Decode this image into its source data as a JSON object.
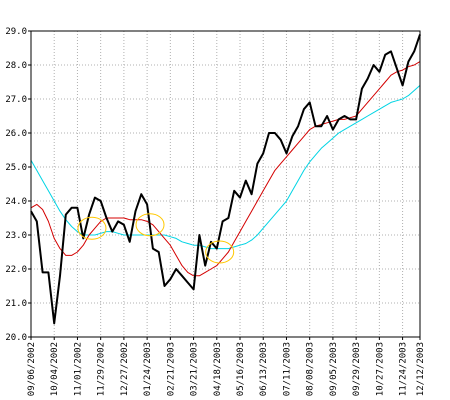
{
  "chart_data": {
    "type": "line",
    "title": "",
    "xlabel": "",
    "ylabel": "",
    "ylim": [
      20.0,
      29.0
    ],
    "grid": true,
    "y_ticks": [
      "20.0",
      "21.0",
      "22.0",
      "23.0",
      "24.0",
      "25.0",
      "26.0",
      "27.0",
      "28.0",
      "29.0"
    ],
    "x_ticks": [
      "09/06/2002",
      "10/04/2002",
      "11/01/2002",
      "11/29/2002",
      "12/27/2002",
      "01/24/2003",
      "02/21/2003",
      "03/21/2003",
      "04/18/2003",
      "05/16/2003",
      "06/13/2003",
      "07/11/2003",
      "08/08/2003",
      "09/05/2003",
      "09/29/2003",
      "10/27/2003",
      "11/24/2003",
      "12/12/2003"
    ],
    "x_tick_index": [
      0,
      4,
      8,
      12,
      16,
      20,
      24,
      28,
      32,
      36,
      40,
      44,
      48,
      52,
      56,
      60,
      64,
      67
    ],
    "x_count": 68,
    "colors": {
      "price": "#000000",
      "short_ma": "#d40000",
      "long_ma": "#00d4e4",
      "highlight": "#ffc800",
      "grid": "#b0b0b0"
    },
    "series": [
      {
        "key": "price",
        "color": "#000000",
        "values": [
          23.7,
          23.4,
          21.9,
          21.9,
          20.4,
          21.8,
          23.6,
          23.8,
          23.8,
          22.9,
          23.6,
          24.1,
          24.0,
          23.5,
          23.1,
          23.4,
          23.3,
          22.8,
          23.7,
          24.2,
          23.9,
          22.6,
          22.5,
          21.5,
          21.7,
          22.0,
          21.8,
          21.6,
          21.4,
          23.0,
          22.1,
          22.8,
          22.6,
          23.4,
          23.5,
          24.3,
          24.1,
          24.6,
          24.2,
          25.1,
          25.4,
          26.0,
          26.0,
          25.8,
          25.4,
          25.9,
          26.2,
          26.7,
          26.9,
          26.2,
          26.2,
          26.5,
          26.1,
          26.4,
          26.5,
          26.4,
          26.4,
          27.3,
          27.6,
          28.0,
          27.8,
          28.3,
          28.4,
          27.9,
          27.4,
          28.1,
          28.4,
          28.9
        ]
      },
      {
        "key": "short_ma",
        "color": "#d40000",
        "values": [
          23.8,
          23.9,
          23.75,
          23.4,
          22.9,
          22.6,
          22.4,
          22.4,
          22.5,
          22.7,
          23.0,
          23.2,
          23.4,
          23.5,
          23.5,
          23.5,
          23.5,
          23.45,
          23.45,
          23.45,
          23.4,
          23.3,
          23.1,
          22.9,
          22.7,
          22.4,
          22.1,
          21.9,
          21.8,
          21.8,
          21.9,
          22.0,
          22.1,
          22.3,
          22.5,
          22.8,
          23.1,
          23.4,
          23.7,
          24.0,
          24.3,
          24.6,
          24.9,
          25.1,
          25.3,
          25.5,
          25.7,
          25.9,
          26.1,
          26.2,
          26.25,
          26.3,
          26.35,
          26.4,
          26.4,
          26.45,
          26.5,
          26.7,
          26.9,
          27.1,
          27.3,
          27.5,
          27.7,
          27.8,
          27.85,
          27.95,
          28.0,
          28.1
        ]
      },
      {
        "key": "long_ma",
        "color": "#00d4e4",
        "values": [
          25.2,
          24.9,
          24.6,
          24.3,
          24.0,
          23.7,
          23.45,
          23.25,
          23.1,
          23.0,
          23.0,
          23.0,
          23.05,
          23.1,
          23.1,
          23.05,
          23.0,
          23.0,
          23.0,
          23.0,
          23.0,
          23.0,
          23.0,
          23.0,
          22.95,
          22.9,
          22.8,
          22.75,
          22.7,
          22.7,
          22.65,
          22.6,
          22.6,
          22.6,
          22.6,
          22.65,
          22.7,
          22.75,
          22.85,
          23.0,
          23.2,
          23.4,
          23.6,
          23.8,
          24.0,
          24.3,
          24.6,
          24.9,
          25.15,
          25.35,
          25.55,
          25.7,
          25.85,
          26.0,
          26.1,
          26.2,
          26.3,
          26.4,
          26.5,
          26.6,
          26.7,
          26.8,
          26.9,
          26.95,
          27.0,
          27.1,
          27.25,
          27.4
        ]
      }
    ],
    "highlights": [
      {
        "x": 10.5,
        "y": 23.2
      },
      {
        "x": 20.5,
        "y": 23.3
      },
      {
        "x": 32.5,
        "y": 22.5
      }
    ]
  }
}
